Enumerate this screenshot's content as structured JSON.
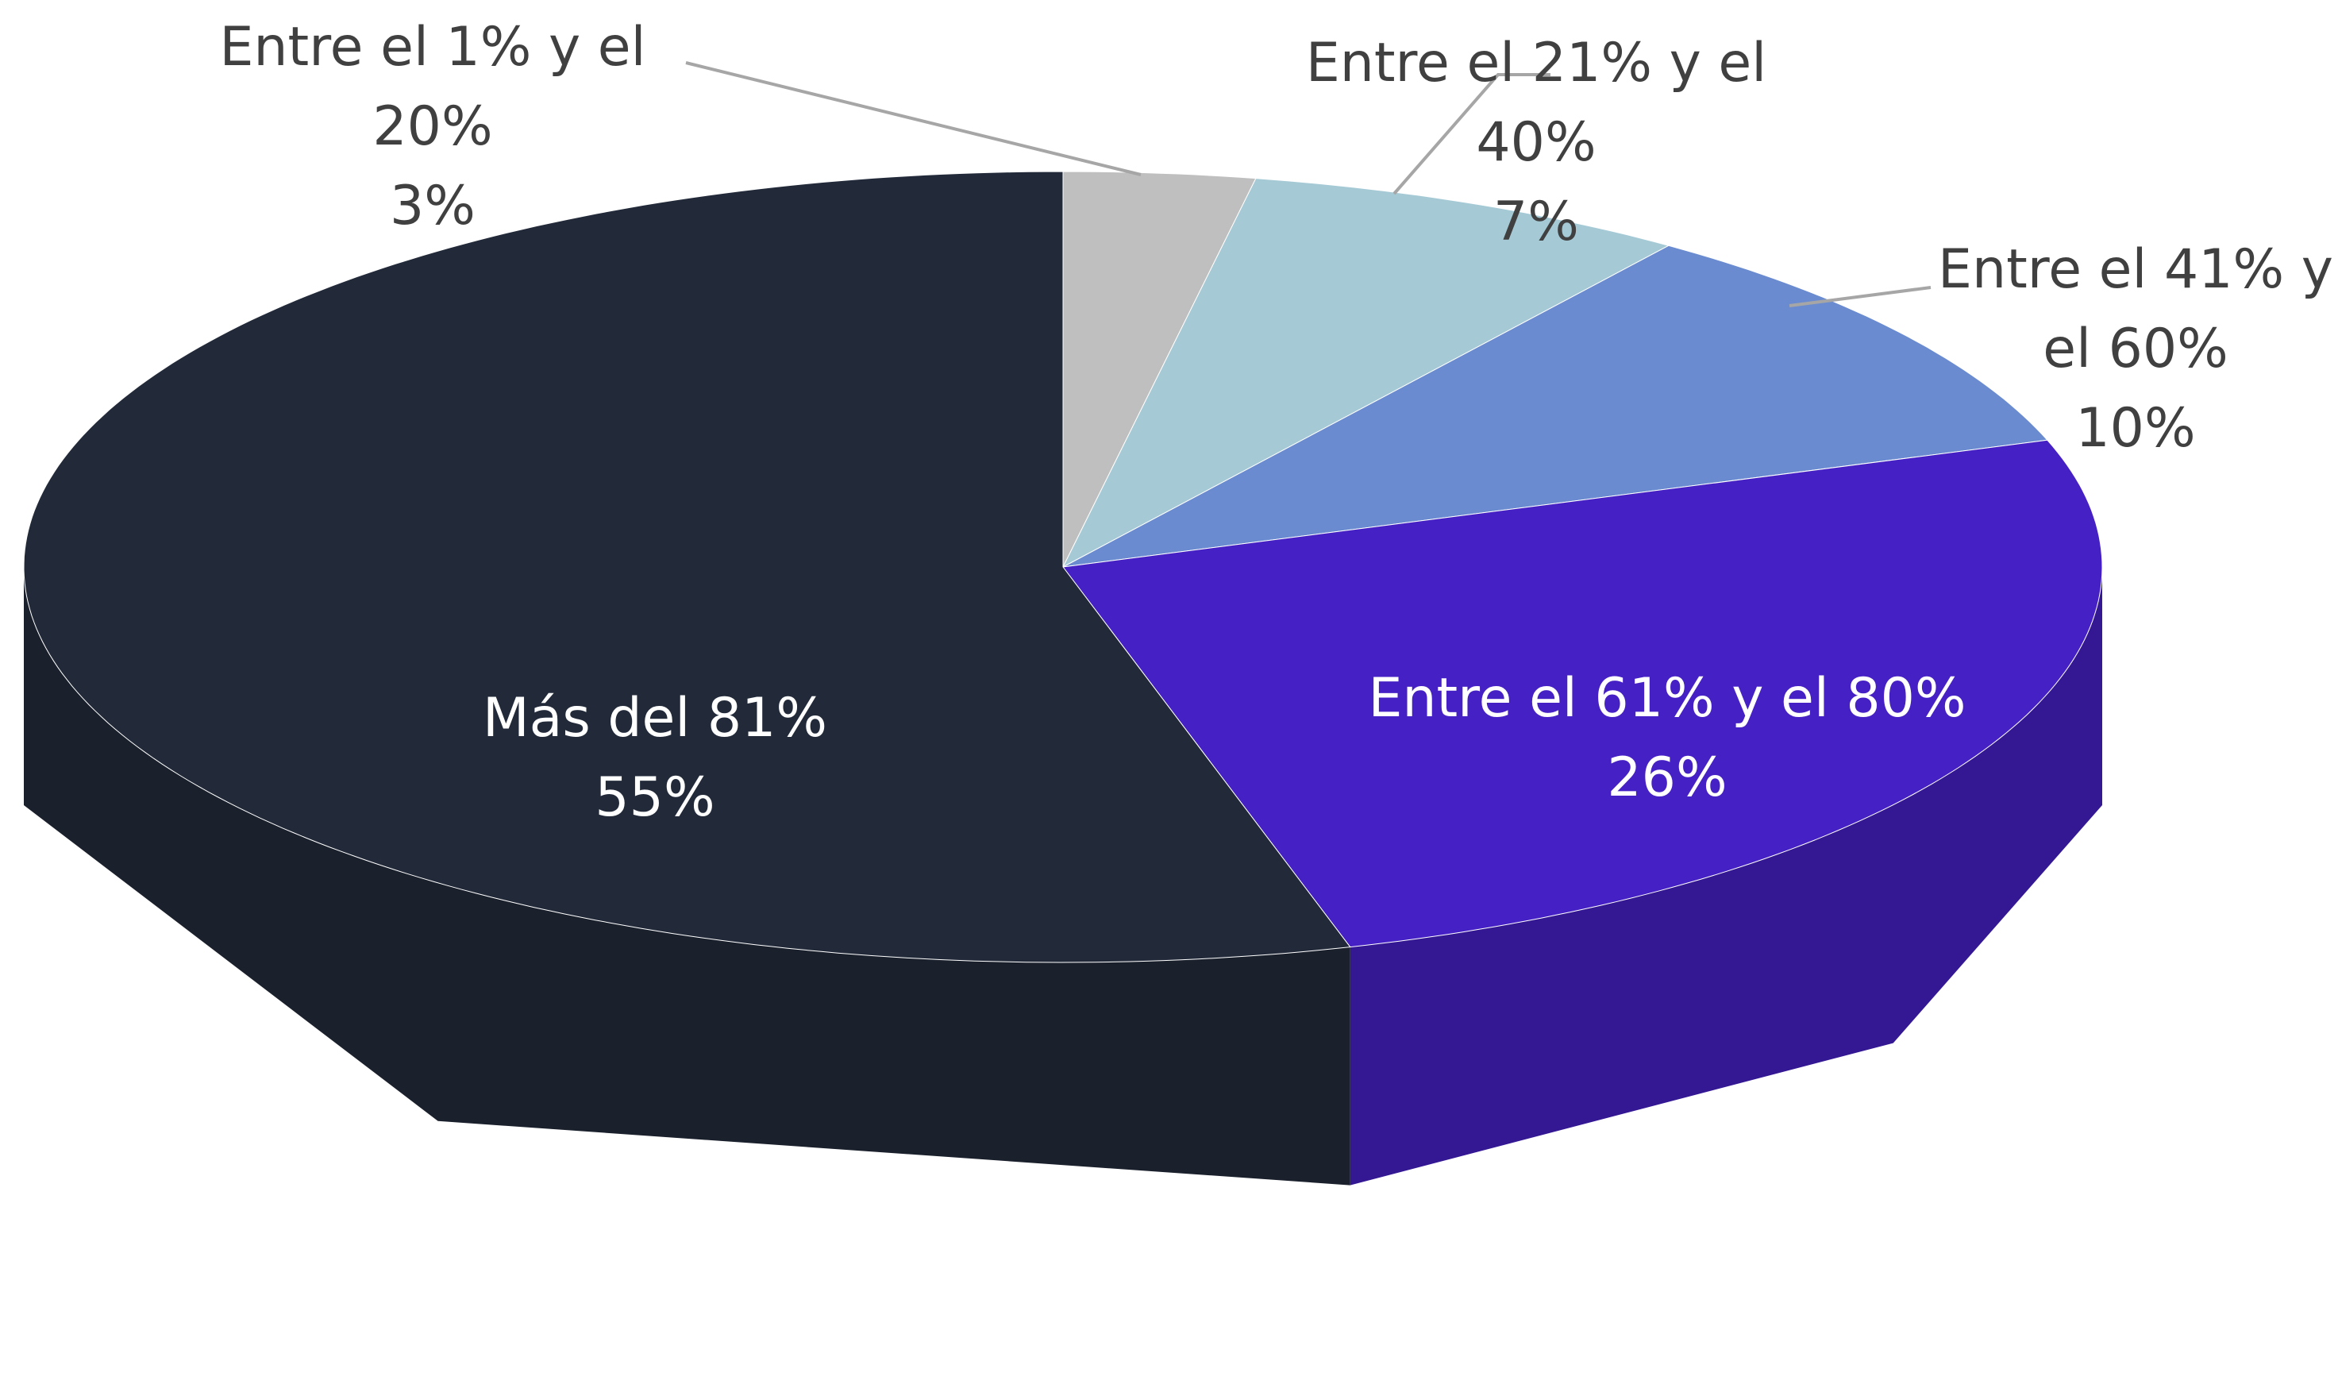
{
  "chart_data": {
    "type": "pie",
    "categories": [
      "Entre el 1% y el 20%",
      "Entre el 21% y el 40%",
      "Entre el 41% y el 60%",
      "Entre el 61% y el 80%",
      "Más del 81%"
    ],
    "values": [
      3,
      7,
      10,
      26,
      55
    ],
    "value_labels": [
      "3%",
      "7%",
      "10%",
      "26%",
      "55%"
    ],
    "colors": [
      "#bfbfbf",
      "#a5cad6",
      "#6a8bcf",
      "#4520c4",
      "#222a3a"
    ]
  }
}
